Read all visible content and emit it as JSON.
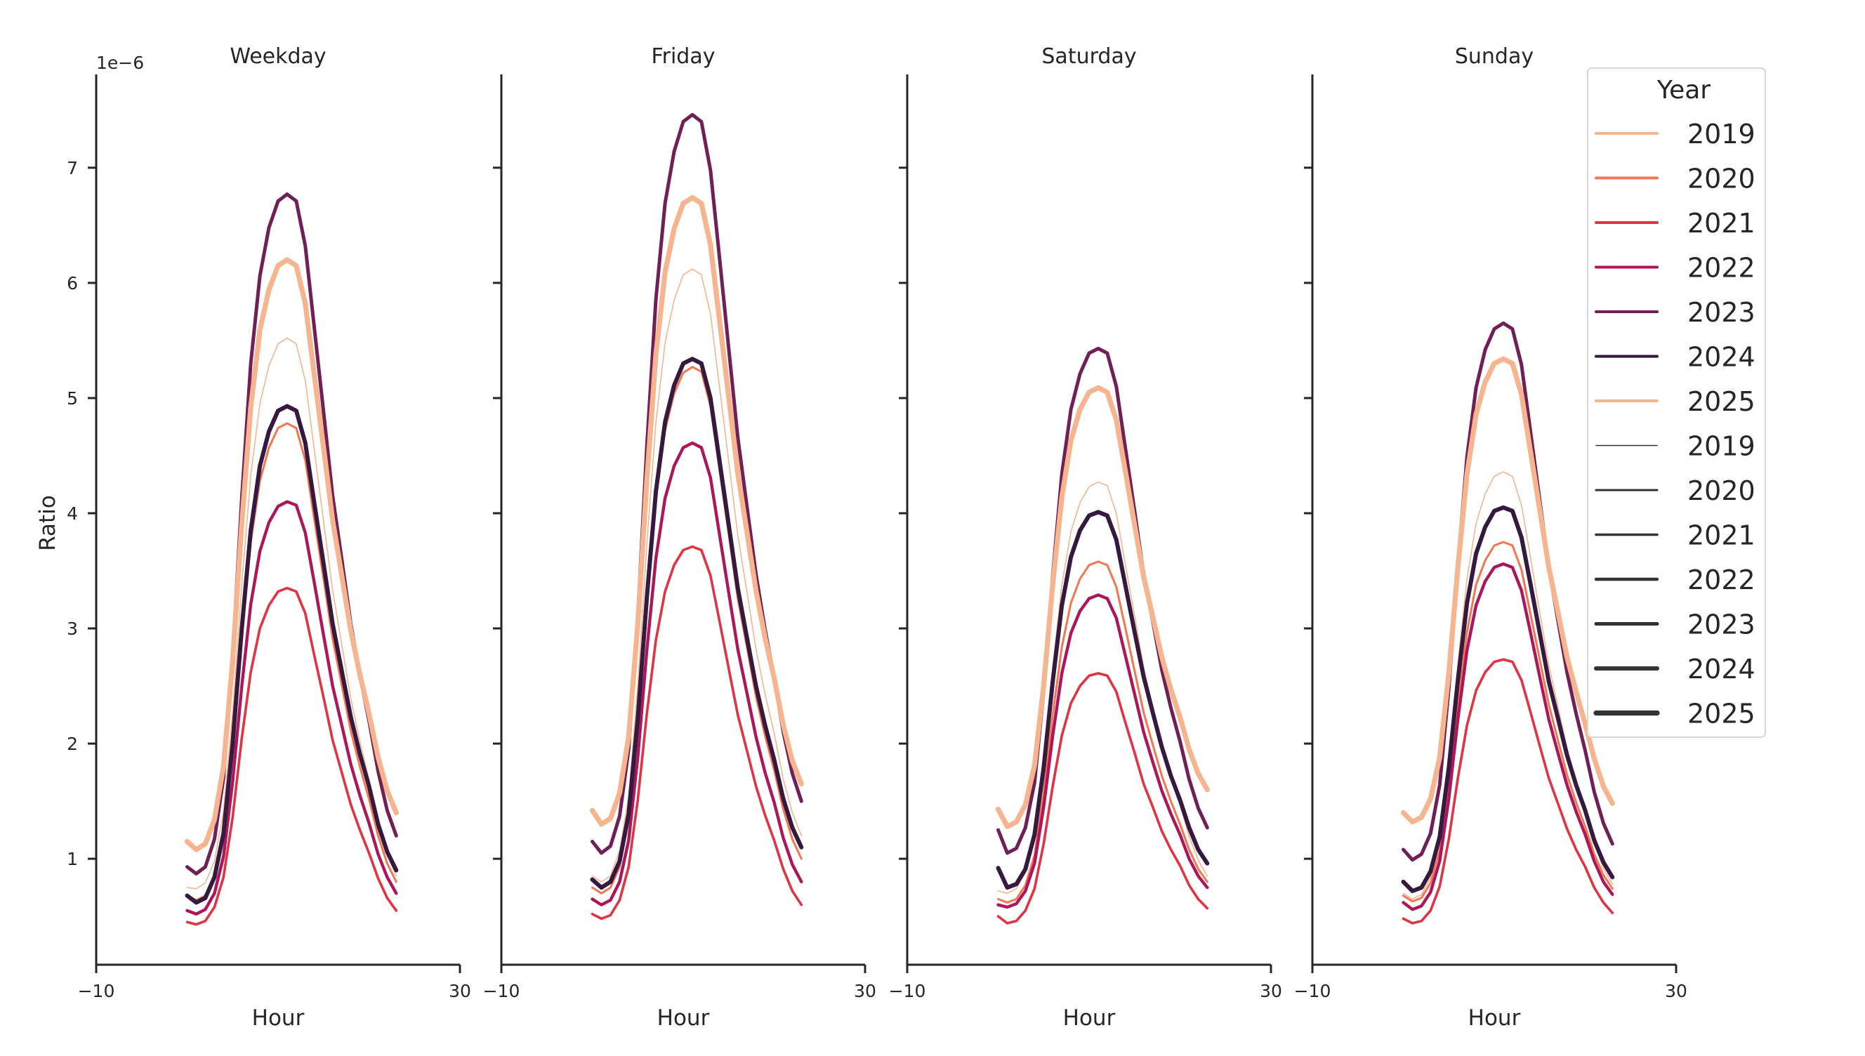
{
  "chart_data": {
    "type": "line",
    "offset_label": "1e−6",
    "ylabel": "Ratio",
    "xlabel": "Hour",
    "xlim": [
      -10,
      30
    ],
    "ylim": [
      0.08,
      7.81
    ],
    "x_ticks": [
      "−10",
      "30"
    ],
    "y_ticks": [
      "1",
      "2",
      "3",
      "4",
      "5",
      "6",
      "7"
    ],
    "y_tick_values": [
      1,
      2,
      3,
      4,
      5,
      6,
      7
    ],
    "grid": false,
    "x": [
      0,
      1,
      2,
      3,
      4,
      5,
      6,
      7,
      8,
      9,
      10,
      11,
      12,
      13,
      14,
      15,
      16,
      17,
      18,
      19,
      20,
      21,
      22,
      23
    ],
    "legend": {
      "title": "Year",
      "placement": "right",
      "hue_entries": [
        "2019",
        "2020",
        "2021",
        "2022",
        "2023",
        "2024",
        "2025"
      ],
      "size_entries": [
        "2019",
        "2020",
        "2021",
        "2022",
        "2023",
        "2024",
        "2025"
      ]
    },
    "colors": {
      "2019": "#f6b48f",
      "2020": "#f37651",
      "2021": "#e13342",
      "2022": "#ad1759",
      "2023": "#701f57",
      "2024": "#35193e",
      "2025": "#f6b48f"
    },
    "size_legend_color": "#333333",
    "panels": [
      {
        "title": "Weekday",
        "series": [
          {
            "name": "2019",
            "values": [
              0.75,
              0.74,
              0.79,
              0.98,
              1.41,
              2.27,
              3.37,
              4.33,
              4.95,
              5.28,
              5.47,
              5.52,
              5.47,
              5.15,
              4.54,
              3.93,
              3.33,
              2.86,
              2.39,
              2.02,
              1.69,
              1.32,
              1.04,
              0.85
            ]
          },
          {
            "name": "2020",
            "values": [
              0.68,
              0.64,
              0.68,
              0.85,
              1.22,
              1.96,
              2.92,
              3.75,
              4.28,
              4.57,
              4.74,
              4.78,
              4.74,
              4.46,
              3.94,
              3.43,
              2.91,
              2.51,
              2.11,
              1.8,
              1.52,
              1.2,
              0.96,
              0.8
            ]
          },
          {
            "name": "2021",
            "values": [
              0.45,
              0.43,
              0.46,
              0.58,
              0.84,
              1.36,
              2.04,
              2.62,
              3.0,
              3.2,
              3.32,
              3.35,
              3.32,
              3.13,
              2.76,
              2.4,
              2.03,
              1.75,
              1.47,
              1.25,
              1.05,
              0.83,
              0.66,
              0.55
            ]
          },
          {
            "name": "2022",
            "values": [
              0.55,
              0.52,
              0.56,
              0.7,
              1.02,
              1.67,
              2.49,
              3.21,
              3.67,
              3.92,
              4.06,
              4.1,
              4.07,
              3.83,
              3.39,
              2.94,
              2.5,
              2.16,
              1.82,
              1.55,
              1.31,
              1.04,
              0.84,
              0.7
            ]
          },
          {
            "name": "2023",
            "values": [
              0.93,
              0.87,
              0.93,
              1.17,
              1.7,
              2.76,
              4.12,
              5.3,
              6.06,
              6.48,
              6.71,
              6.77,
              6.71,
              6.32,
              5.6,
              4.88,
              4.15,
              3.6,
              3.04,
              2.59,
              2.2,
              1.76,
              1.42,
              1.2
            ]
          },
          {
            "name": "2024",
            "values": [
              0.68,
              0.62,
              0.66,
              0.84,
              1.22,
              2.0,
              2.99,
              3.85,
              4.41,
              4.71,
              4.89,
              4.93,
              4.89,
              4.61,
              4.08,
              3.56,
              3.04,
              2.63,
              2.23,
              1.91,
              1.63,
              1.3,
              1.06,
              0.9
            ]
          },
          {
            "name": "2025",
            "values": [
              1.15,
              1.08,
              1.13,
              1.34,
              1.8,
              2.72,
              3.9,
              4.92,
              5.59,
              5.94,
              6.15,
              6.2,
              6.15,
              5.82,
              5.19,
              4.57,
              3.94,
              3.46,
              2.98,
              2.6,
              2.26,
              1.88,
              1.59,
              1.4
            ]
          }
        ]
      },
      {
        "title": "Friday",
        "series": [
          {
            "name": "2019",
            "values": [
              0.85,
              0.8,
              0.85,
              1.07,
              1.54,
              2.5,
              3.73,
              4.79,
              5.48,
              5.85,
              6.07,
              6.12,
              6.07,
              5.73,
              5.09,
              4.45,
              3.81,
              3.32,
              2.82,
              2.43,
              2.09,
              1.69,
              1.4,
              1.2
            ]
          },
          {
            "name": "2020",
            "values": [
              0.75,
              0.7,
              0.75,
              0.93,
              1.34,
              2.16,
              3.21,
              4.13,
              4.72,
              5.04,
              5.22,
              5.27,
              5.23,
              4.93,
              4.37,
              3.82,
              3.26,
              2.84,
              2.41,
              2.07,
              1.77,
              1.43,
              1.17,
              1.0
            ]
          },
          {
            "name": "2021",
            "values": [
              0.52,
              0.48,
              0.51,
              0.64,
              0.93,
              1.51,
              2.26,
              2.9,
              3.32,
              3.55,
              3.68,
              3.71,
              3.68,
              3.46,
              3.06,
              2.65,
              2.25,
              1.94,
              1.63,
              1.38,
              1.16,
              0.91,
              0.72,
              0.6
            ]
          },
          {
            "name": "2022",
            "values": [
              0.65,
              0.6,
              0.64,
              0.8,
              1.16,
              1.88,
              2.81,
              3.61,
              4.13,
              4.41,
              4.57,
              4.61,
              4.57,
              4.31,
              3.81,
              3.31,
              2.82,
              2.44,
              2.06,
              1.75,
              1.49,
              1.18,
              0.95,
              0.8
            ]
          },
          {
            "name": "2023",
            "values": [
              1.15,
              1.05,
              1.11,
              1.37,
              1.95,
              3.1,
              4.58,
              5.86,
              6.69,
              7.14,
              7.4,
              7.46,
              7.4,
              6.98,
              6.21,
              5.43,
              4.66,
              4.06,
              3.47,
              2.99,
              2.57,
              2.1,
              1.74,
              1.5
            ]
          },
          {
            "name": "2024",
            "values": [
              0.82,
              0.75,
              0.8,
              0.98,
              1.39,
              2.22,
              3.27,
              4.19,
              4.79,
              5.11,
              5.3,
              5.34,
              5.3,
              5.0,
              4.45,
              3.9,
              3.35,
              2.92,
              2.5,
              2.16,
              1.86,
              1.52,
              1.27,
              1.1
            ]
          },
          {
            "name": "2025",
            "values": [
              1.42,
              1.3,
              1.35,
              1.57,
              2.06,
              3.04,
              4.29,
              5.38,
              6.09,
              6.47,
              6.69,
              6.74,
              6.69,
              6.33,
              5.67,
              5.01,
              4.35,
              3.84,
              3.33,
              2.92,
              2.57,
              2.16,
              1.85,
              1.65
            ]
          }
        ]
      },
      {
        "title": "Saturday",
        "series": [
          {
            "name": "2019",
            "values": [
              0.72,
              0.7,
              0.74,
              0.88,
              1.2,
              1.84,
              2.66,
              3.38,
              3.84,
              4.09,
              4.23,
              4.27,
              4.24,
              4.0,
              3.55,
              3.11,
              2.66,
              2.32,
              1.98,
              1.71,
              1.47,
              1.19,
              0.99,
              0.85
            ]
          },
          {
            "name": "2020",
            "values": [
              0.65,
              0.62,
              0.65,
              0.77,
              1.03,
              1.57,
              2.25,
              2.84,
              3.22,
              3.43,
              3.55,
              3.58,
              3.55,
              3.36,
              3.0,
              2.63,
              2.27,
              1.99,
              1.72,
              1.5,
              1.3,
              1.08,
              0.91,
              0.8
            ]
          },
          {
            "name": "2021",
            "values": [
              0.5,
              0.44,
              0.46,
              0.55,
              0.74,
              1.13,
              1.63,
              2.07,
              2.35,
              2.5,
              2.59,
              2.61,
              2.59,
              2.45,
              2.18,
              1.92,
              1.65,
              1.45,
              1.24,
              1.08,
              0.94,
              0.77,
              0.65,
              0.57
            ]
          },
          {
            "name": "2022",
            "values": [
              0.6,
              0.58,
              0.61,
              0.72,
              0.96,
              1.45,
              2.07,
              2.61,
              2.96,
              3.15,
              3.26,
              3.29,
              3.26,
              3.09,
              2.76,
              2.43,
              2.1,
              1.84,
              1.59,
              1.39,
              1.21,
              1.0,
              0.85,
              0.75
            ]
          },
          {
            "name": "2023",
            "values": [
              1.25,
              1.05,
              1.09,
              1.27,
              1.66,
              2.45,
              3.46,
              4.34,
              4.9,
              5.21,
              5.39,
              5.43,
              5.39,
              5.1,
              4.56,
              4.02,
              3.47,
              3.06,
              2.64,
              2.31,
              2.02,
              1.69,
              1.44,
              1.27
            ]
          },
          {
            "name": "2024",
            "values": [
              0.92,
              0.75,
              0.78,
              0.91,
              1.21,
              1.79,
              2.54,
              3.2,
              3.62,
              3.85,
              3.98,
              4.01,
              3.98,
              3.77,
              3.37,
              2.97,
              2.58,
              2.27,
              1.97,
              1.72,
              1.51,
              1.27,
              1.08,
              0.96
            ]
          },
          {
            "name": "2025",
            "values": [
              1.43,
              1.28,
              1.32,
              1.47,
              1.81,
              2.5,
              3.38,
              4.14,
              4.63,
              4.9,
              5.05,
              5.09,
              5.05,
              4.81,
              4.36,
              3.9,
              3.45,
              3.1,
              2.75,
              2.47,
              2.23,
              1.95,
              1.74,
              1.6
            ]
          }
        ]
      },
      {
        "title": "Sunday",
        "series": [
          {
            "name": "2019",
            "values": [
              0.7,
              0.65,
              0.69,
              0.84,
              1.17,
              1.84,
              2.69,
              3.43,
              3.91,
              4.17,
              4.32,
              4.36,
              4.32,
              4.07,
              3.61,
              3.14,
              2.68,
              2.32,
              1.96,
              1.68,
              1.42,
              1.14,
              0.92,
              0.78
            ]
          },
          {
            "name": "2020",
            "values": [
              0.68,
              0.63,
              0.66,
              0.79,
              1.07,
              1.63,
              2.35,
              2.97,
              3.38,
              3.59,
              3.72,
              3.75,
              3.72,
              3.51,
              3.12,
              2.73,
              2.34,
              2.03,
              1.73,
              1.49,
              1.28,
              1.04,
              0.86,
              0.74
            ]
          },
          {
            "name": "2021",
            "values": [
              0.48,
              0.44,
              0.46,
              0.55,
              0.76,
              1.17,
              1.7,
              2.16,
              2.46,
              2.62,
              2.71,
              2.73,
              2.71,
              2.55,
              2.27,
              1.98,
              1.7,
              1.48,
              1.26,
              1.08,
              0.93,
              0.75,
              0.62,
              0.53
            ]
          },
          {
            "name": "2022",
            "values": [
              0.62,
              0.56,
              0.59,
              0.71,
              0.98,
              1.52,
              2.21,
              2.81,
              3.2,
              3.41,
              3.53,
              3.56,
              3.53,
              3.33,
              2.96,
              2.58,
              2.21,
              1.92,
              1.64,
              1.41,
              1.21,
              0.98,
              0.8,
              0.69
            ]
          },
          {
            "name": "2023",
            "values": [
              1.08,
              0.99,
              1.04,
              1.22,
              1.64,
              2.48,
              3.55,
              4.49,
              5.09,
              5.42,
              5.6,
              5.65,
              5.6,
              5.29,
              4.7,
              4.11,
              3.53,
              3.07,
              2.62,
              2.26,
              1.94,
              1.58,
              1.31,
              1.13
            ]
          },
          {
            "name": "2024",
            "values": [
              0.8,
              0.72,
              0.75,
              0.89,
              1.19,
              1.79,
              2.55,
              3.22,
              3.65,
              3.88,
              4.02,
              4.05,
              4.02,
              3.79,
              3.38,
              2.96,
              2.54,
              2.22,
              1.9,
              1.64,
              1.42,
              1.16,
              0.97,
              0.84
            ]
          },
          {
            "name": "2025",
            "values": [
              1.4,
              1.32,
              1.36,
              1.52,
              1.88,
              2.61,
              3.53,
              4.34,
              4.86,
              5.14,
              5.3,
              5.34,
              5.3,
              5.03,
              4.53,
              4.03,
              3.53,
              3.14,
              2.75,
              2.45,
              2.17,
              1.87,
              1.63,
              1.48
            ]
          }
        ]
      }
    ]
  }
}
